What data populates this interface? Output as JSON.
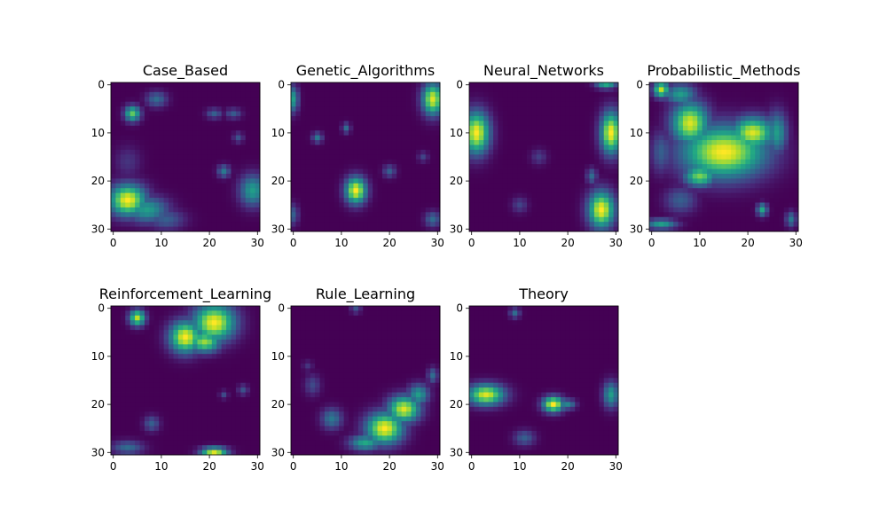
{
  "chart_data": [
    {
      "type": "heatmap",
      "title": "Case_Based",
      "grid_size": 31,
      "xlim": [
        0,
        30
      ],
      "ylim": [
        30,
        0
      ],
      "xticks": [
        0,
        10,
        20,
        30
      ],
      "yticks": [
        0,
        10,
        20,
        30
      ],
      "xtick_labels": [
        "0",
        "10",
        "20",
        "30"
      ],
      "ytick_labels": [
        "0",
        "10",
        "20",
        "30"
      ],
      "value_range": [
        0,
        1
      ],
      "colormap": "viridis",
      "blobs": [
        {
          "x": 3,
          "y": 24,
          "rx": 3.5,
          "ry": 3,
          "v": 1.0
        },
        {
          "x": 7,
          "y": 26,
          "rx": 4,
          "ry": 2.5,
          "v": 0.55
        },
        {
          "x": 11,
          "y": 28,
          "rx": 3.5,
          "ry": 2,
          "v": 0.3
        },
        {
          "x": 4,
          "y": 6,
          "rx": 1.5,
          "ry": 1.5,
          "v": 0.75
        },
        {
          "x": 9,
          "y": 3,
          "rx": 2,
          "ry": 1.5,
          "v": 0.35
        },
        {
          "x": 29,
          "y": 22,
          "rx": 2.5,
          "ry": 3,
          "v": 0.55
        },
        {
          "x": 23,
          "y": 18,
          "rx": 1.2,
          "ry": 1.2,
          "v": 0.4
        },
        {
          "x": 21,
          "y": 6,
          "rx": 1.5,
          "ry": 1,
          "v": 0.3
        },
        {
          "x": 25,
          "y": 6,
          "rx": 1.5,
          "ry": 1,
          "v": 0.28
        },
        {
          "x": 26,
          "y": 11,
          "rx": 1,
          "ry": 1,
          "v": 0.25
        },
        {
          "x": 3,
          "y": 16,
          "rx": 2.5,
          "ry": 3,
          "v": 0.15
        }
      ]
    },
    {
      "type": "heatmap",
      "title": "Genetic_Algorithms",
      "grid_size": 31,
      "xlim": [
        0,
        30
      ],
      "ylim": [
        30,
        0
      ],
      "xticks": [
        0,
        10,
        20,
        30
      ],
      "yticks": [
        0,
        10,
        20,
        30
      ],
      "xtick_labels": [
        "0",
        "10",
        "20",
        "30"
      ],
      "ytick_labels": [
        "0",
        "10",
        "20",
        "30"
      ],
      "value_range": [
        0,
        1
      ],
      "colormap": "viridis",
      "blobs": [
        {
          "x": 29,
          "y": 3,
          "rx": 2,
          "ry": 3,
          "v": 0.95
        },
        {
          "x": 13,
          "y": 22,
          "rx": 2,
          "ry": 2.5,
          "v": 1.0
        },
        {
          "x": 0,
          "y": 3,
          "rx": 1,
          "ry": 2.5,
          "v": 0.55
        },
        {
          "x": 5,
          "y": 11,
          "rx": 1,
          "ry": 1,
          "v": 0.4
        },
        {
          "x": 11,
          "y": 9,
          "rx": 0.8,
          "ry": 1,
          "v": 0.35
        },
        {
          "x": 20,
          "y": 18,
          "rx": 1.2,
          "ry": 1.2,
          "v": 0.3
        },
        {
          "x": 29,
          "y": 28,
          "rx": 1.5,
          "ry": 1.5,
          "v": 0.35
        },
        {
          "x": 0,
          "y": 27,
          "rx": 1,
          "ry": 2,
          "v": 0.3
        },
        {
          "x": 27,
          "y": 15,
          "rx": 1,
          "ry": 1,
          "v": 0.2
        }
      ]
    },
    {
      "type": "heatmap",
      "title": "Neural_Networks",
      "grid_size": 31,
      "xlim": [
        0,
        30
      ],
      "ylim": [
        30,
        0
      ],
      "xticks": [
        0,
        10,
        20,
        30
      ],
      "yticks": [
        0,
        10,
        20,
        30
      ],
      "xtick_labels": [
        "0",
        "10",
        "20",
        "30"
      ],
      "ytick_labels": [
        "0",
        "10",
        "20",
        "30"
      ],
      "value_range": [
        0,
        1
      ],
      "colormap": "viridis",
      "blobs": [
        {
          "x": 1,
          "y": 10,
          "rx": 2.5,
          "ry": 4,
          "v": 1.0
        },
        {
          "x": 29,
          "y": 10,
          "rx": 2,
          "ry": 4,
          "v": 1.0
        },
        {
          "x": 27,
          "y": 26,
          "rx": 2.5,
          "ry": 3.5,
          "v": 1.0
        },
        {
          "x": 28,
          "y": 0,
          "rx": 2,
          "ry": 0.8,
          "v": 0.6
        },
        {
          "x": 25,
          "y": 19,
          "rx": 1,
          "ry": 1.5,
          "v": 0.35
        },
        {
          "x": 10,
          "y": 25,
          "rx": 1.5,
          "ry": 1.5,
          "v": 0.2
        },
        {
          "x": 14,
          "y": 15,
          "rx": 1.5,
          "ry": 1.5,
          "v": 0.18
        }
      ]
    },
    {
      "type": "heatmap",
      "title": "Probabilistic_Methods",
      "grid_size": 31,
      "xlim": [
        0,
        30
      ],
      "ylim": [
        30,
        0
      ],
      "xticks": [
        0,
        10,
        20,
        30
      ],
      "yticks": [
        0,
        10,
        20,
        30
      ],
      "xtick_labels": [
        "0",
        "10",
        "20",
        "30"
      ],
      "ytick_labels": [
        "0",
        "10",
        "20",
        "30"
      ],
      "value_range": [
        0,
        1
      ],
      "colormap": "viridis",
      "blobs": [
        {
          "x": 15,
          "y": 14,
          "rx": 8,
          "ry": 5,
          "v": 1.0
        },
        {
          "x": 8,
          "y": 8,
          "rx": 3.5,
          "ry": 4,
          "v": 0.95
        },
        {
          "x": 21,
          "y": 10,
          "rx": 4,
          "ry": 3,
          "v": 0.95
        },
        {
          "x": 2,
          "y": 1,
          "rx": 1.5,
          "ry": 1.5,
          "v": 0.9
        },
        {
          "x": 6,
          "y": 2,
          "rx": 3,
          "ry": 2,
          "v": 0.55
        },
        {
          "x": 10,
          "y": 19,
          "rx": 3,
          "ry": 2,
          "v": 0.8
        },
        {
          "x": 26,
          "y": 10,
          "rx": 2,
          "ry": 4,
          "v": 0.55
        },
        {
          "x": 2,
          "y": 14,
          "rx": 2,
          "ry": 4,
          "v": 0.3
        },
        {
          "x": 23,
          "y": 26,
          "rx": 1,
          "ry": 1.2,
          "v": 0.6
        },
        {
          "x": 2,
          "y": 29,
          "rx": 3,
          "ry": 1,
          "v": 0.55
        },
        {
          "x": 6,
          "y": 24,
          "rx": 3,
          "ry": 2.5,
          "v": 0.3
        },
        {
          "x": 29,
          "y": 28,
          "rx": 1,
          "ry": 1.5,
          "v": 0.4
        }
      ]
    },
    {
      "type": "heatmap",
      "title": "Reinforcement_Learning",
      "grid_size": 31,
      "xlim": [
        0,
        30
      ],
      "ylim": [
        30,
        0
      ],
      "xticks": [
        0,
        10,
        20,
        30
      ],
      "yticks": [
        0,
        10,
        20,
        30
      ],
      "xtick_labels": [
        "0",
        "10",
        "20",
        "30"
      ],
      "ytick_labels": [
        "0",
        "10",
        "20",
        "30"
      ],
      "value_range": [
        0,
        1
      ],
      "colormap": "viridis",
      "blobs": [
        {
          "x": 15,
          "y": 6,
          "rx": 3,
          "ry": 3,
          "v": 1.0
        },
        {
          "x": 21,
          "y": 3,
          "rx": 4,
          "ry": 3.5,
          "v": 1.0
        },
        {
          "x": 19,
          "y": 7,
          "rx": 3,
          "ry": 2,
          "v": 0.85
        },
        {
          "x": 5,
          "y": 2,
          "rx": 1.5,
          "ry": 1.5,
          "v": 0.9
        },
        {
          "x": 21,
          "y": 30,
          "rx": 2.5,
          "ry": 1,
          "v": 0.95
        },
        {
          "x": 3,
          "y": 29,
          "rx": 3,
          "ry": 1.3,
          "v": 0.35
        },
        {
          "x": 8,
          "y": 24,
          "rx": 1.5,
          "ry": 1.5,
          "v": 0.3
        },
        {
          "x": 27,
          "y": 17,
          "rx": 1,
          "ry": 1,
          "v": 0.25
        },
        {
          "x": 23,
          "y": 18,
          "rx": 0.8,
          "ry": 0.8,
          "v": 0.22
        }
      ]
    },
    {
      "type": "heatmap",
      "title": "Rule_Learning",
      "grid_size": 31,
      "xlim": [
        0,
        30
      ],
      "ylim": [
        30,
        0
      ],
      "xticks": [
        0,
        10,
        20,
        30
      ],
      "yticks": [
        0,
        10,
        20,
        30
      ],
      "xtick_labels": [
        "0",
        "10",
        "20",
        "30"
      ],
      "ytick_labels": [
        "0",
        "10",
        "20",
        "30"
      ],
      "value_range": [
        0,
        1
      ],
      "colormap": "viridis",
      "blobs": [
        {
          "x": 19,
          "y": 25,
          "rx": 3.5,
          "ry": 3,
          "v": 1.0
        },
        {
          "x": 23,
          "y": 21,
          "rx": 3,
          "ry": 2.5,
          "v": 0.95
        },
        {
          "x": 26,
          "y": 18,
          "rx": 2,
          "ry": 2,
          "v": 0.55
        },
        {
          "x": 15,
          "y": 28,
          "rx": 3,
          "ry": 1.5,
          "v": 0.6
        },
        {
          "x": 8,
          "y": 23,
          "rx": 2,
          "ry": 2,
          "v": 0.4
        },
        {
          "x": 4,
          "y": 16,
          "rx": 1.5,
          "ry": 2,
          "v": 0.22
        },
        {
          "x": 13,
          "y": 0,
          "rx": 1,
          "ry": 1,
          "v": 0.25
        },
        {
          "x": 29,
          "y": 14,
          "rx": 1,
          "ry": 1.5,
          "v": 0.35
        },
        {
          "x": 3,
          "y": 12,
          "rx": 1,
          "ry": 1,
          "v": 0.15
        }
      ]
    },
    {
      "type": "heatmap",
      "title": "Theory",
      "grid_size": 31,
      "xlim": [
        0,
        30
      ],
      "ylim": [
        30,
        0
      ],
      "xticks": [
        0,
        10,
        20,
        30
      ],
      "yticks": [
        0,
        10,
        20,
        30
      ],
      "xtick_labels": [
        "0",
        "10",
        "20",
        "30"
      ],
      "ytick_labels": [
        "0",
        "10",
        "20",
        "30"
      ],
      "value_range": [
        0,
        1
      ],
      "colormap": "viridis",
      "blobs": [
        {
          "x": 3,
          "y": 18,
          "rx": 3.5,
          "ry": 2,
          "v": 0.95
        },
        {
          "x": 17,
          "y": 20,
          "rx": 2,
          "ry": 1.5,
          "v": 1.0
        },
        {
          "x": 29,
          "y": 18,
          "rx": 1.5,
          "ry": 2.5,
          "v": 0.55
        },
        {
          "x": 11,
          "y": 27,
          "rx": 2,
          "ry": 1.5,
          "v": 0.3
        },
        {
          "x": 9,
          "y": 1,
          "rx": 1,
          "ry": 1,
          "v": 0.35
        },
        {
          "x": 20,
          "y": 20,
          "rx": 1.5,
          "ry": 1,
          "v": 0.45
        }
      ]
    }
  ]
}
